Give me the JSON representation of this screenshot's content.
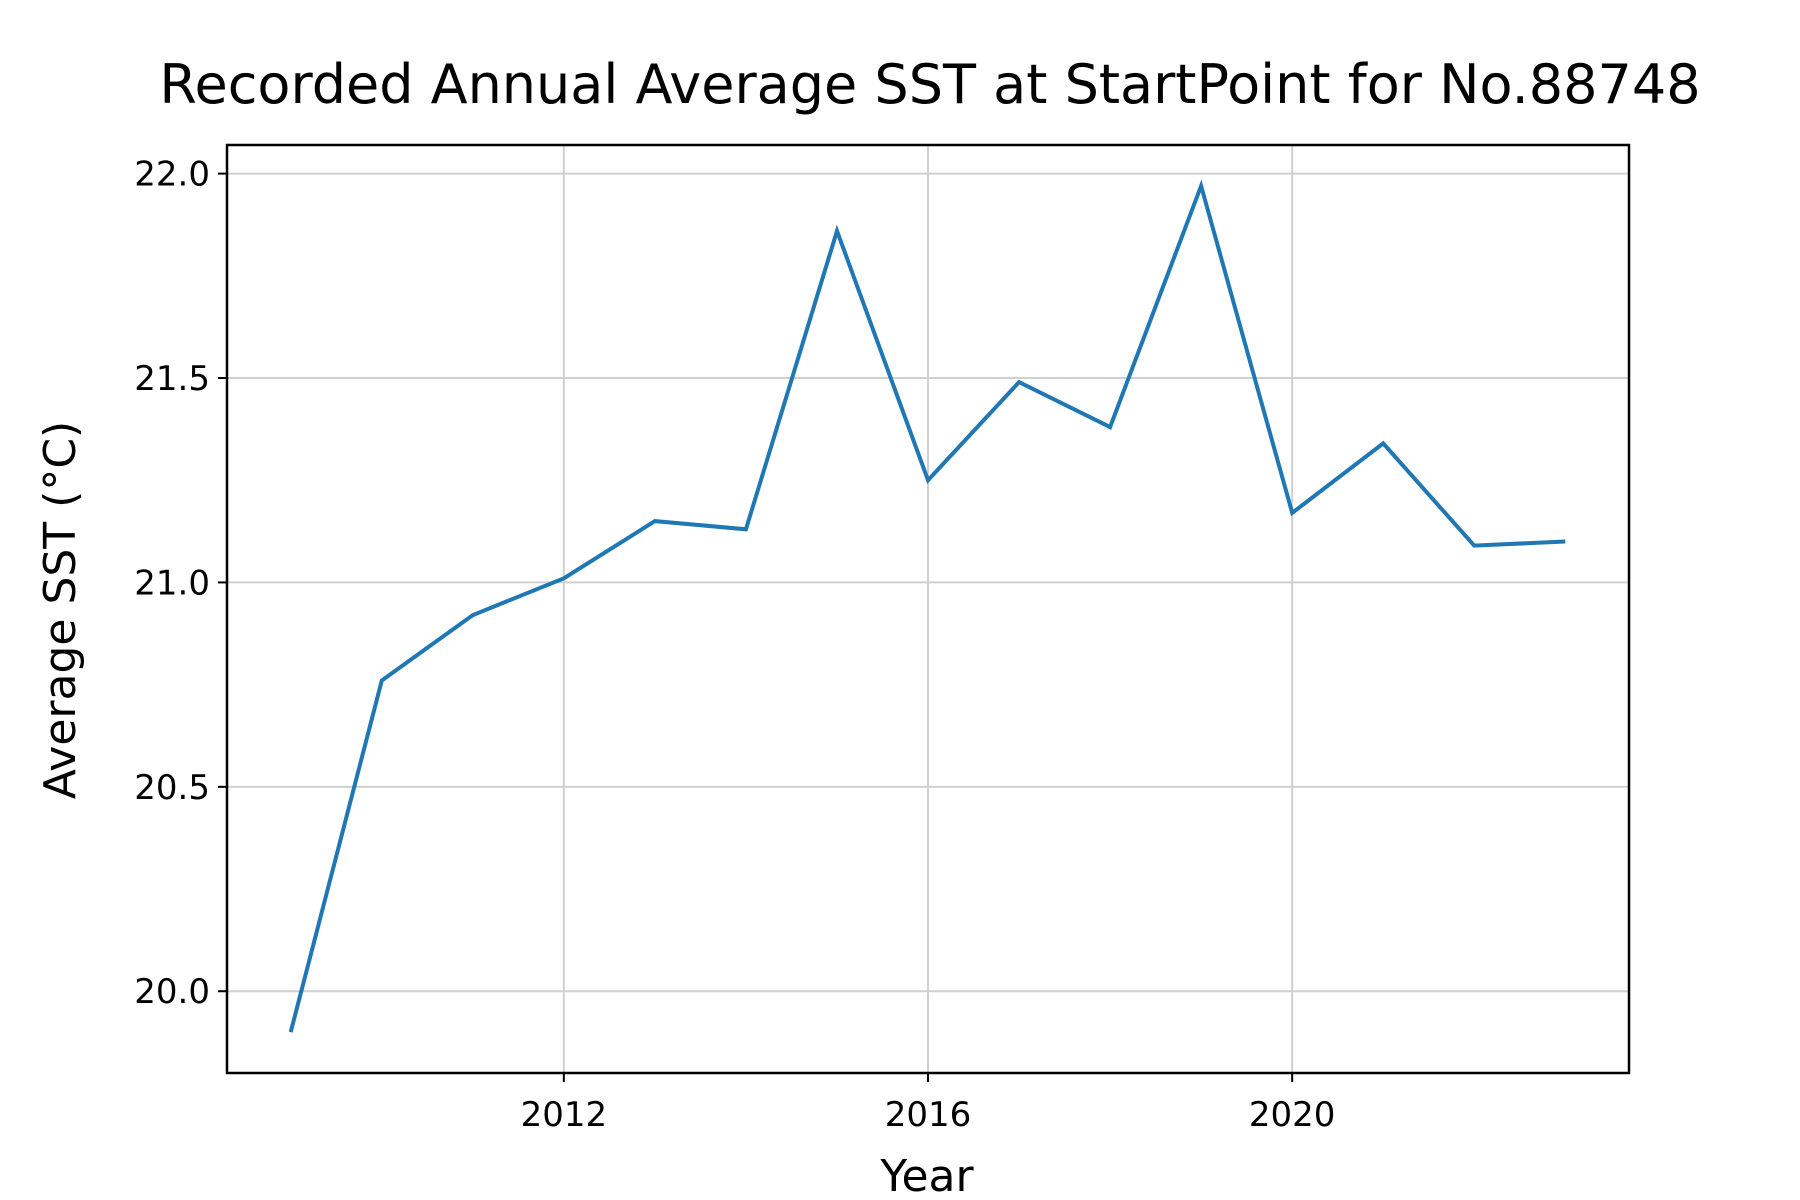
{
  "chart_data": {
    "type": "line",
    "title": "Recorded Annual Average SST at StartPoint for No.88748",
    "xlabel": "Year",
    "ylabel": "Average SST (°C)",
    "x": [
      2009,
      2010,
      2011,
      2012,
      2013,
      2014,
      2015,
      2016,
      2017,
      2018,
      2019,
      2020,
      2021,
      2022,
      2023
    ],
    "series": [
      {
        "values": [
          19.9,
          20.76,
          20.92,
          21.01,
          21.15,
          21.13,
          21.86,
          21.25,
          21.49,
          21.38,
          21.97,
          21.17,
          21.34,
          21.09,
          21.1
        ]
      }
    ],
    "xlim": [
      2008.3,
      2023.7
    ],
    "ylim": [
      19.8,
      22.07
    ],
    "xticks": [
      2012,
      2016,
      2020
    ],
    "yticks": [
      20.0,
      20.5,
      21.0,
      21.5,
      22.0
    ],
    "xtick_labels": [
      "2012",
      "2016",
      "2020"
    ],
    "ytick_labels": [
      "20.0",
      "20.5",
      "21.0",
      "21.5",
      "22.0"
    ],
    "grid": true,
    "line_color": "#1f77b4"
  }
}
